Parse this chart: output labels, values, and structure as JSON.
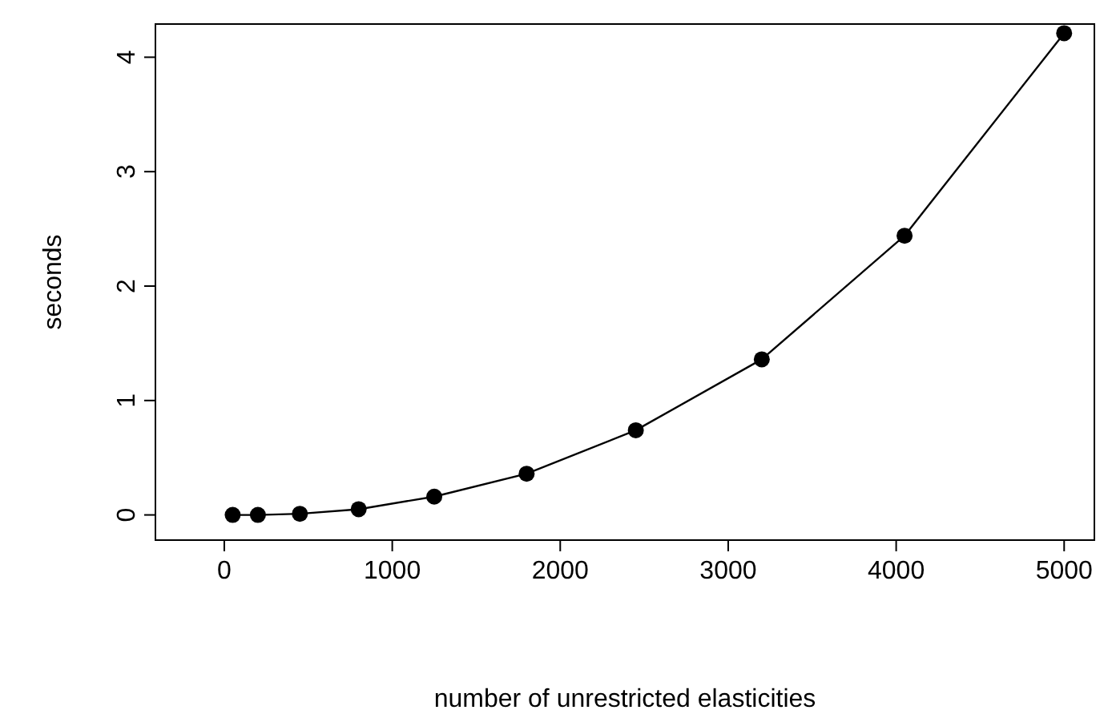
{
  "chart_data": {
    "type": "line",
    "xlabel": "number of unrestricted elasticities",
    "ylabel": "seconds",
    "x": [
      50,
      200,
      450,
      800,
      1250,
      1800,
      2450,
      3200,
      4050,
      5000
    ],
    "series": [
      {
        "color": "#000000",
        "values": [
          0,
          0,
          0.01,
          0.05,
          0.16,
          0.36,
          0.74,
          1.36,
          2.44,
          4.21
        ]
      }
    ],
    "xlim": [
      -410,
      5180
    ],
    "ylim": [
      -0.22,
      4.29
    ],
    "xticks": [
      0,
      1000,
      2000,
      3000,
      4000,
      5000
    ],
    "yticks": [
      0,
      1,
      2,
      3,
      4
    ],
    "marker": "circle",
    "line_style": "solid"
  }
}
